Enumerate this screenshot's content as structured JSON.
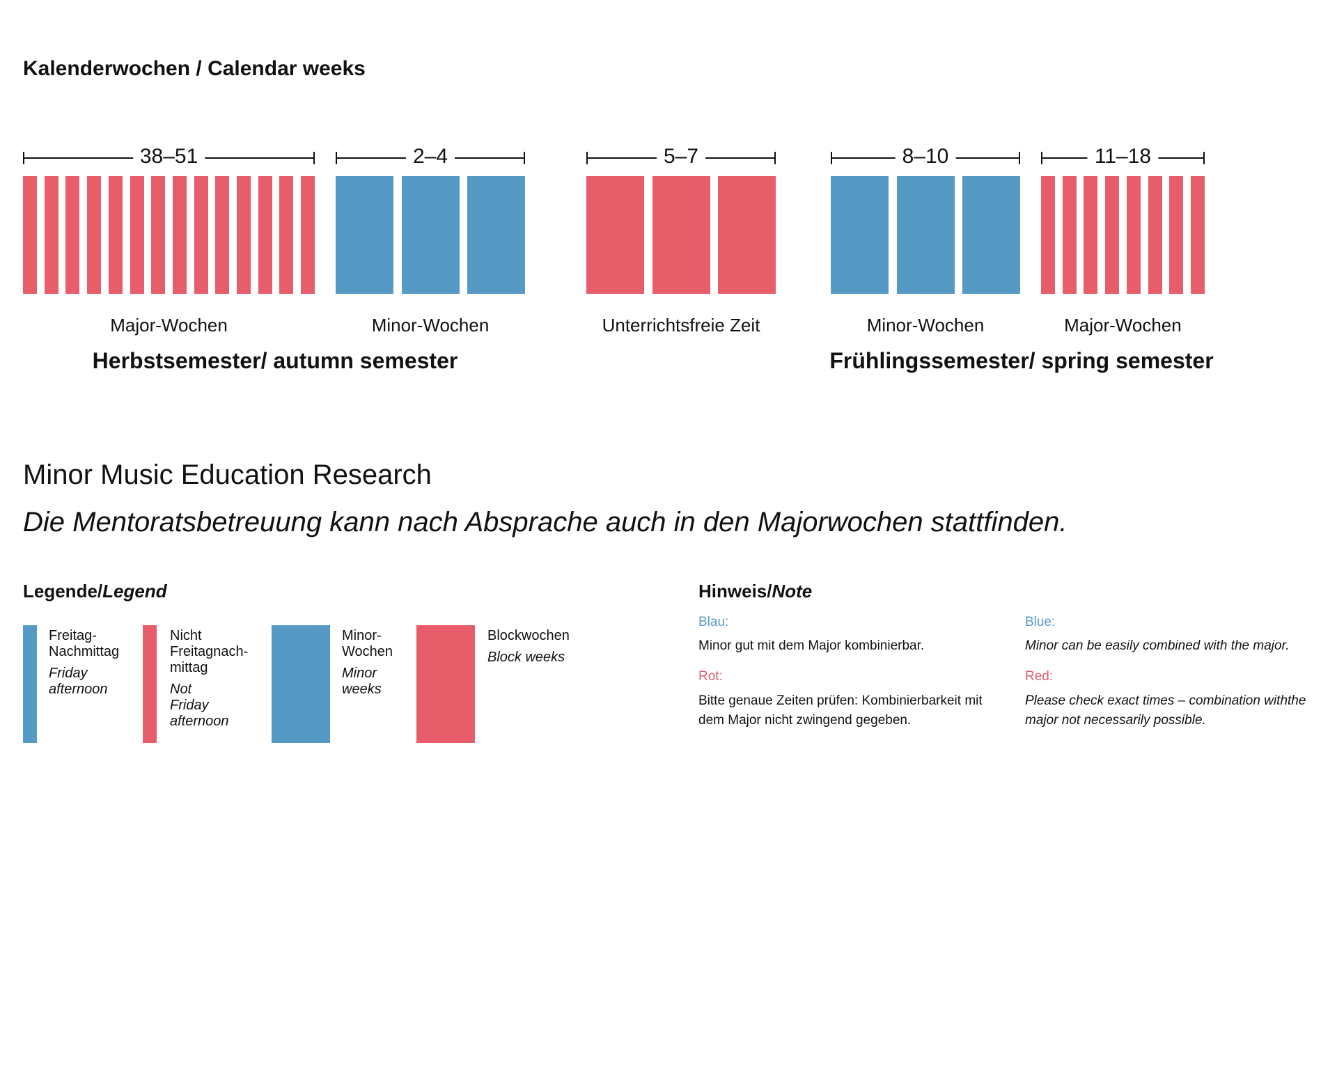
{
  "title": "Kalenderwochen / Calendar weeks",
  "colors": {
    "red": "#E85D6A",
    "blue": "#5599C5",
    "blue_text": "#5A9AC8",
    "red_text": "#E0606E"
  },
  "groups": [
    {
      "weeks": "38–51",
      "count": 14,
      "color": "red",
      "style": "thin",
      "label": "Major-Wochen"
    },
    {
      "weeks": "2–4",
      "count": 3,
      "color": "blue",
      "style": "wide",
      "label": "Minor-Wochen"
    },
    {
      "weeks": "5–7",
      "count": 3,
      "color": "red",
      "style": "wide",
      "label": "Unterrichtsfreie Zeit"
    },
    {
      "weeks": "8–10",
      "count": 3,
      "color": "blue",
      "style": "wide",
      "label": "Minor-Wochen"
    },
    {
      "weeks": "11–18",
      "count": 8,
      "color": "red",
      "style": "thin",
      "label": "Major-Wochen"
    }
  ],
  "semesters": {
    "autumn": "Herbstsemester/ autumn semester",
    "spring": "Frühlingssemester/ spring semester"
  },
  "heading": "Minor Music Education Research",
  "subheading": "Die Mentoratsbetreuung kann nach Absprache auch in den Majorwochen stattfinden.",
  "legend": {
    "title_de": "Legende/",
    "title_en": "Legend",
    "items": [
      {
        "de": "Freitag-\nNachmittag",
        "en": "Friday\nafternoon",
        "color": "blue",
        "style": "thin"
      },
      {
        "de": "Nicht\nFreitagnach-\nmittag",
        "en": "Not\nFriday\nafternoon",
        "color": "red",
        "style": "thin"
      },
      {
        "de": "Minor-\nWochen",
        "en": "Minor\nweeks",
        "color": "blue",
        "style": "wide"
      },
      {
        "de": "Blockwochen",
        "en": "Block weeks",
        "color": "red",
        "style": "wide"
      }
    ]
  },
  "note": {
    "title_de": "Hinweis/",
    "title_en": "Note",
    "blue_de_label": "Blau:",
    "blue_de_text": "Minor gut mit dem Major kombinierbar.",
    "red_de_label": "Rot:",
    "red_de_text_1": "Bitte genaue Zeiten prüfen: Kombinierbarkeit mit",
    "red_de_text_2": "dem Major nicht zwingend gegeben.",
    "blue_en_label": "Blue:",
    "blue_en_text": "Minor can be easily combined with the major.",
    "red_en_label": "Red:",
    "red_en_text_1": "Please check exact times – combination withthe",
    "red_en_text_2": "major not necessarily possible."
  }
}
